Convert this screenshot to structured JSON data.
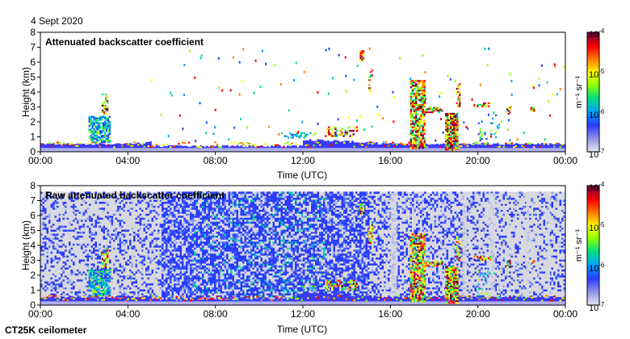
{
  "header": {
    "date": "4 Sept 2020"
  },
  "footer": {
    "instrument": "CT25K ceilometer"
  },
  "chart_data": [
    {
      "type": "heatmap",
      "title": "Attenuated backscatter coefficient",
      "xlabel": "Time (UTC)",
      "ylabel": "Height (km)",
      "x_ticks": [
        "00:00",
        "04:00",
        "08:00",
        "12:00",
        "16:00",
        "20:00",
        "00:00"
      ],
      "y_ticks": [
        "0",
        "1",
        "2",
        "3",
        "4",
        "5",
        "6",
        "7",
        "8"
      ],
      "xlim_hours": [
        0,
        24
      ],
      "ylim": [
        0,
        8
      ],
      "colorbar": {
        "scale": "log",
        "min": "10^-7",
        "max": "10^-4",
        "ticks": [
          "-4",
          "-5",
          "-6",
          "-7"
        ],
        "unit": "m⁻¹ sr⁻¹"
      },
      "features": [
        {
          "t0": 0,
          "t1": 24,
          "h0": 0,
          "h1": 0.5,
          "kind": "surface-layer"
        },
        {
          "t0": 2.2,
          "t1": 3.2,
          "h0": 0.5,
          "h1": 2.5,
          "kind": "cloud-column"
        },
        {
          "t0": 14.6,
          "t1": 14.8,
          "h0": 6.0,
          "h1": 6.8,
          "kind": "high-cloud"
        },
        {
          "t0": 17.0,
          "t1": 17.6,
          "h0": 0.1,
          "h1": 5.0,
          "kind": "cloud-column"
        },
        {
          "t0": 18.6,
          "t1": 19.1,
          "h0": 0.1,
          "h1": 2.6,
          "kind": "cloud-column"
        }
      ]
    },
    {
      "type": "heatmap",
      "title": "Raw attenuated backscatter coefficient",
      "xlabel": "Time (UTC)",
      "ylabel": "Height (km)",
      "x_ticks": [
        "00:00",
        "04:00",
        "08:00",
        "12:00",
        "16:00",
        "20:00",
        "00:00"
      ],
      "y_ticks": [
        "0",
        "1",
        "2",
        "3",
        "4",
        "5",
        "6",
        "7",
        "8"
      ],
      "xlim_hours": [
        0,
        24
      ],
      "ylim": [
        0,
        8
      ],
      "colorbar": {
        "scale": "log",
        "min": "10^-7",
        "max": "10^-4",
        "ticks": [
          "-4",
          "-5",
          "-6",
          "-7"
        ],
        "unit": "m⁻¹ sr⁻¹"
      }
    }
  ]
}
